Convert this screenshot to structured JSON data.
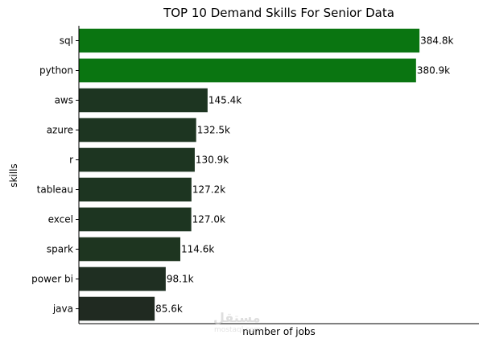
{
  "chart_data": {
    "type": "bar",
    "orientation": "horizontal",
    "title": "TOP 10 Demand Skills For Senior Data",
    "xlabel": "number of jobs",
    "ylabel": "skills",
    "categories": [
      "sql",
      "python",
      "aws",
      "azure",
      "r",
      "tableau",
      "excel",
      "spark",
      "power bi",
      "java"
    ],
    "values": [
      384800,
      380900,
      145400,
      132500,
      130900,
      127200,
      127000,
      114600,
      98100,
      85600
    ],
    "value_labels": [
      "384.8k",
      "380.9k",
      "145.4k",
      "132.5k",
      "130.9k",
      "127.2k",
      "127.0k",
      "114.6k",
      "98.1k",
      "85.6k"
    ],
    "colors": [
      "#0a7511",
      "#0a7511",
      "#1d3521",
      "#1d3521",
      "#1d3521",
      "#1d3521",
      "#1d3521",
      "#1e3520",
      "#1f2f22",
      "#202a21"
    ],
    "xlim": [
      0,
      452000
    ],
    "grid": false,
    "xticks_visible": false
  },
  "watermark": {
    "text": "مستقل",
    "subtext": "mostaql.com"
  }
}
